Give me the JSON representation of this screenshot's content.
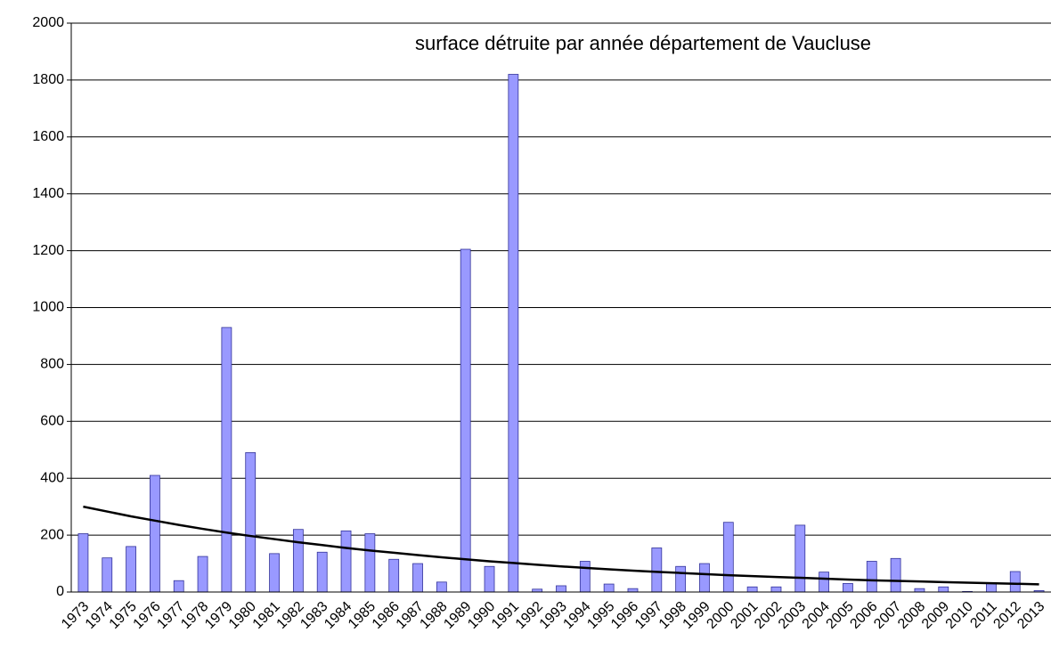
{
  "chart_data": {
    "type": "bar",
    "title": "surface détruite par année département de Vaucluse",
    "categories": [
      "1973",
      "1974",
      "1975",
      "1976",
      "1977",
      "1978",
      "1979",
      "1980",
      "1981",
      "1982",
      "1983",
      "1984",
      "1985",
      "1986",
      "1987",
      "1988",
      "1989",
      "1990",
      "1991",
      "1992",
      "1993",
      "1994",
      "1995",
      "1996",
      "1997",
      "1998",
      "1999",
      "2000",
      "2001",
      "2002",
      "2003",
      "2004",
      "2005",
      "2006",
      "2007",
      "2008",
      "2009",
      "2010",
      "2011",
      "2012",
      "2013"
    ],
    "values": [
      205,
      120,
      160,
      410,
      40,
      125,
      930,
      490,
      135,
      220,
      140,
      215,
      205,
      115,
      100,
      35,
      1205,
      90,
      1820,
      10,
      22,
      108,
      28,
      12,
      155,
      90,
      100,
      245,
      18,
      18,
      235,
      70,
      30,
      108,
      118,
      12,
      18,
      2,
      30,
      72,
      5
    ],
    "color": "#9999ff",
    "trend": {
      "color": "#000000",
      "values": [
        300,
        283,
        266,
        251,
        236,
        222,
        209,
        197,
        186,
        175,
        165,
        155,
        146,
        138,
        130,
        122,
        115,
        108,
        102,
        96,
        90,
        85,
        80,
        75,
        71,
        67,
        63,
        59,
        56,
        53,
        50,
        47,
        44,
        41,
        39,
        37,
        35,
        33,
        31,
        29,
        27
      ]
    },
    "ylim": [
      0,
      2000
    ],
    "yticks": [
      0,
      200,
      400,
      600,
      800,
      1000,
      1200,
      1400,
      1600,
      1800,
      2000
    ],
    "grid": true
  }
}
